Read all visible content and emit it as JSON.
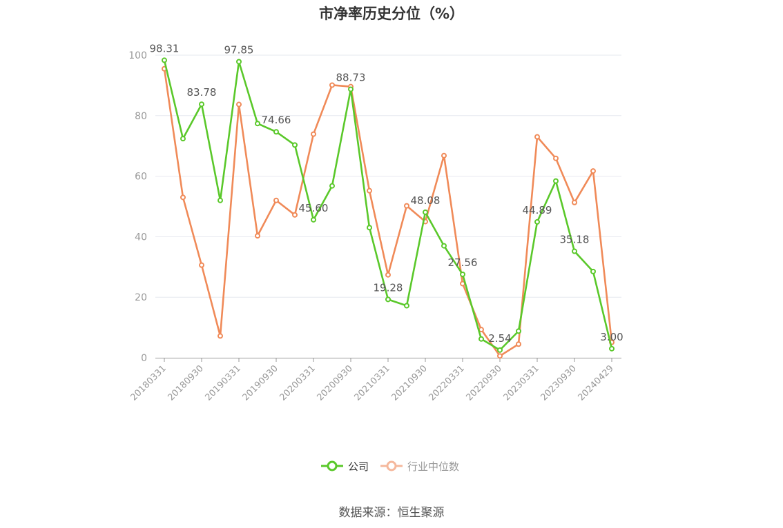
{
  "title": "市净率历史分位（%）",
  "source": "数据来源：恒生聚源",
  "colors": {
    "company": "#5ac82a",
    "industry": "#f08a58",
    "industry_legend": "#f5b89c",
    "grid": "#e6e8ef",
    "axis": "#999999"
  },
  "chart_data": {
    "type": "line",
    "title": "市净率历史分位（%）",
    "ylim": [
      0,
      100
    ],
    "yticks": [
      0,
      20,
      40,
      60,
      80,
      100
    ],
    "grid": true,
    "legend_position": "bottom-center",
    "x": [
      "20180331",
      "20180630",
      "20180930",
      "20181231",
      "20190331",
      "20190630",
      "20190930",
      "20191231",
      "20200331",
      "20200630",
      "20200930",
      "20201231",
      "20210331",
      "20210630",
      "20210930",
      "20211231",
      "20220331",
      "20220630",
      "20220930",
      "20221231",
      "20230331",
      "20230630",
      "20230930",
      "20231231",
      "20240429"
    ],
    "x_tick_labels": [
      "20180331",
      "20180930",
      "20190331",
      "20190930",
      "20200331",
      "20200930",
      "20210331",
      "20210930",
      "20220331",
      "20220930",
      "20230331",
      "20230930",
      "20240429"
    ],
    "series": [
      {
        "name": "公司",
        "values": [
          98.31,
          72.4,
          83.78,
          52.0,
          97.85,
          77.4,
          74.66,
          70.3,
          45.6,
          56.8,
          88.73,
          43.0,
          19.28,
          17.2,
          48.08,
          37.0,
          27.56,
          6.2,
          2.54,
          8.8,
          44.89,
          58.4,
          35.18,
          28.5,
          3.0
        ]
      },
      {
        "name": "行业中位数",
        "values": [
          95.5,
          53.0,
          30.6,
          7.2,
          83.7,
          40.3,
          52.0,
          47.2,
          73.9,
          90.1,
          89.6,
          55.2,
          27.4,
          50.2,
          45.0,
          66.8,
          24.5,
          9.3,
          0.6,
          4.5,
          73.0,
          65.9,
          51.3,
          61.7,
          5.1
        ]
      }
    ],
    "data_labels": [
      {
        "series": 0,
        "index": 0,
        "text": "98.31"
      },
      {
        "series": 0,
        "index": 2,
        "text": "83.78"
      },
      {
        "series": 0,
        "index": 4,
        "text": "97.85"
      },
      {
        "series": 0,
        "index": 6,
        "text": "74.66"
      },
      {
        "series": 0,
        "index": 8,
        "text": "45.60"
      },
      {
        "series": 0,
        "index": 10,
        "text": "88.73"
      },
      {
        "series": 0,
        "index": 12,
        "text": "19.28"
      },
      {
        "series": 0,
        "index": 14,
        "text": "48.08"
      },
      {
        "series": 0,
        "index": 16,
        "text": "27.56"
      },
      {
        "series": 0,
        "index": 18,
        "text": "2.54"
      },
      {
        "series": 0,
        "index": 20,
        "text": "44.89"
      },
      {
        "series": 0,
        "index": 22,
        "text": "35.18"
      },
      {
        "series": 0,
        "index": 24,
        "text": "3.00"
      }
    ]
  }
}
